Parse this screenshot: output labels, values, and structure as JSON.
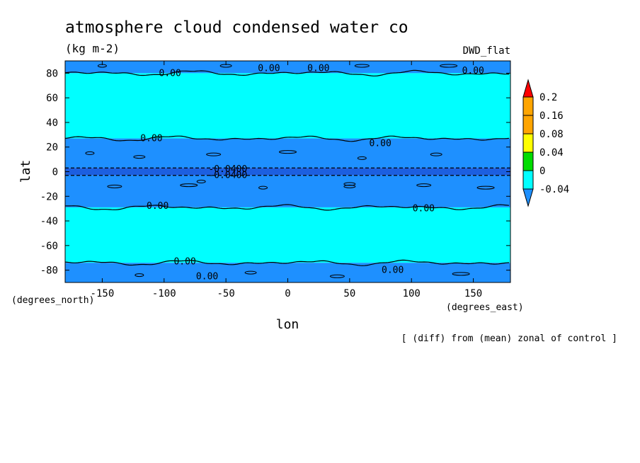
{
  "chart_data": {
    "type": "heatmap",
    "title": "atmosphere cloud condensed water co",
    "units": "(kg m-2)",
    "model_label": "DWD_flat",
    "subtitle": "[ (diff) from (mean) zonal of control ]",
    "xlabel": "lon",
    "ylabel": "lat",
    "x_units": "(degrees_east)",
    "y_units": "(degrees_north)",
    "xlim": [
      -180,
      180
    ],
    "ylim": [
      -90,
      90
    ],
    "x_ticks": [
      -150,
      -100,
      -50,
      0,
      50,
      100,
      150
    ],
    "y_ticks": [
      -80,
      -60,
      -40,
      -20,
      0,
      20,
      40,
      60,
      80
    ],
    "x_tick_labels": [
      "-150",
      "-100",
      "-50",
      "0",
      "50",
      "100",
      "150"
    ],
    "y_tick_labels": [
      "-80",
      "-60",
      "-40",
      "-20",
      "0",
      "20",
      "40",
      "60",
      "80"
    ],
    "colorbar": {
      "levels": [
        -0.04,
        0,
        0.04,
        0.08,
        0.16,
        0.2
      ],
      "labels": [
        "-0.04",
        "0",
        "0.04",
        "0.08",
        "0.16",
        "0.2"
      ],
      "colors": [
        "#1e90ff",
        "#00ffff",
        "#00dd00",
        "#ffff00",
        "#ffa500",
        "#ff0000"
      ],
      "under_color": "#1e90ff",
      "over_color": "#ff0000"
    },
    "zonal_bands": [
      {
        "lat_min": 80,
        "lat_max": 90,
        "range": "-0.04 to 0",
        "color": "#1e90ff"
      },
      {
        "lat_min": 27,
        "lat_max": 80,
        "range": "0 to 0.04",
        "color": "#00ffff"
      },
      {
        "lat_min": 3,
        "lat_max": 27,
        "range": "-0.04 to 0",
        "color": "#1e90ff"
      },
      {
        "lat_min": -3,
        "lat_max": 3,
        "range": "below -0.04",
        "color": "#1c5fe0"
      },
      {
        "lat_min": -29,
        "lat_max": -3,
        "range": "-0.04 to 0",
        "color": "#1e90ff"
      },
      {
        "lat_min": -74,
        "lat_max": -29,
        "range": "0 to 0.04",
        "color": "#00ffff"
      },
      {
        "lat_min": -90,
        "lat_max": -74,
        "range": "-0.04 to 0",
        "color": "#1e90ff"
      }
    ],
    "contour_labels": [
      {
        "text": "0.00",
        "lon": -95,
        "lat": 80
      },
      {
        "text": "0.00",
        "lon": -15,
        "lat": 84
      },
      {
        "text": "0.00",
        "lon": 25,
        "lat": 84
      },
      {
        "text": "0.00",
        "lon": 150,
        "lat": 82
      },
      {
        "text": "0.00",
        "lon": -110,
        "lat": 27
      },
      {
        "text": "0.00",
        "lon": 75,
        "lat": 23
      },
      {
        "text": "-0.0400",
        "lon": -55,
        "lat": 2
      },
      {
        "text": "-0.0400",
        "lon": -55,
        "lat": -3
      },
      {
        "text": "0.00",
        "lon": -105,
        "lat": -28
      },
      {
        "text": "0.00",
        "lon": 110,
        "lat": -30
      },
      {
        "text": "0.00",
        "lon": -83,
        "lat": -73
      },
      {
        "text": "0.00",
        "lon": 85,
        "lat": -80
      },
      {
        "text": "0.00",
        "lon": -65,
        "lat": -85
      }
    ]
  }
}
